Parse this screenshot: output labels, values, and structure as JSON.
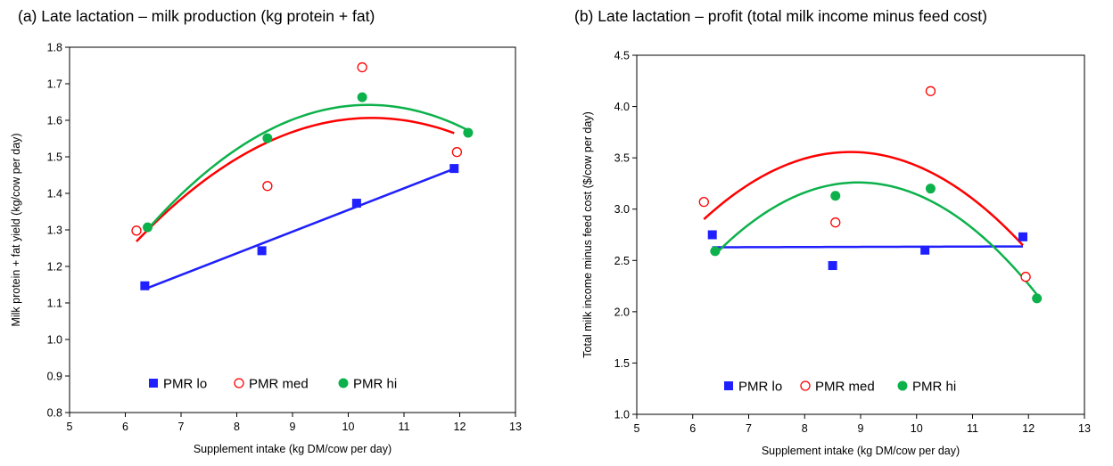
{
  "chart_data": [
    {
      "type": "scatter",
      "title": "(a) Late lactation – milk production (kg protein + fat)",
      "xlabel": "Supplement intake (kg DM/cow per day)",
      "ylabel": "Milk protein + fat yield (kg/cow per day)",
      "xlim": [
        5,
        13
      ],
      "ylim": [
        0.8,
        1.8
      ],
      "xticks": [
        "5",
        "6",
        "7",
        "8",
        "9",
        "10",
        "11",
        "12",
        "13"
      ],
      "yticks": [
        "0.8",
        "0.9",
        "1.0",
        "1.1",
        "1.2",
        "1.3",
        "1.4",
        "1.5",
        "1.6",
        "1.7",
        "1.8"
      ],
      "grid": false,
      "legend_position": "bottom",
      "series": [
        {
          "name": "PMR lo",
          "color": "#1f1fff",
          "marker": "square",
          "points": [
            [
              6.35,
              1.147
            ],
            [
              8.45,
              1.243
            ],
            [
              10.15,
              1.373
            ],
            [
              11.9,
              1.468
            ]
          ],
          "fit": "linear",
          "fit_range": [
            6.35,
            11.9
          ]
        },
        {
          "name": "PMR med",
          "color": "#ff0000",
          "marker": "open-circle",
          "points": [
            [
              6.2,
              1.298
            ],
            [
              8.55,
              1.42
            ],
            [
              10.25,
              1.745
            ],
            [
              11.95,
              1.513
            ]
          ],
          "fit": "quadratic",
          "fit_range": [
            6.2,
            11.9
          ]
        },
        {
          "name": "PMR hi",
          "color": "#0db14b",
          "marker": "filled-circle",
          "points": [
            [
              6.4,
              1.307
            ],
            [
              8.55,
              1.551
            ],
            [
              10.25,
              1.663
            ],
            [
              12.15,
              1.566
            ]
          ],
          "fit": "quadratic",
          "fit_range": [
            6.4,
            12.15
          ]
        }
      ]
    },
    {
      "type": "scatter",
      "title": "(b) Late lactation – profit (total milk income minus feed cost)",
      "xlabel": "Supplement intake (kg DM/cow per day)",
      "ylabel": "Total milk income minus feed cost ($/cow per day)",
      "xlim": [
        5,
        13
      ],
      "ylim": [
        1.0,
        4.5
      ],
      "xticks": [
        "5",
        "6",
        "7",
        "8",
        "9",
        "10",
        "11",
        "12",
        "13"
      ],
      "yticks": [
        "1.0",
        "1.5",
        "2.0",
        "2.5",
        "3.0",
        "3.5",
        "4.0",
        "4.5"
      ],
      "grid": false,
      "legend_position": "bottom",
      "series": [
        {
          "name": "PMR lo",
          "color": "#1f1fff",
          "marker": "square",
          "points": [
            [
              6.35,
              2.75
            ],
            [
              8.5,
              2.45
            ],
            [
              10.15,
              2.6
            ],
            [
              11.9,
              2.73
            ]
          ],
          "fit": "linear",
          "fit_range": [
            6.35,
            11.9
          ]
        },
        {
          "name": "PMR med",
          "color": "#ff0000",
          "marker": "open-circle",
          "points": [
            [
              6.2,
              3.07
            ],
            [
              8.55,
              2.87
            ],
            [
              10.25,
              4.15
            ],
            [
              11.95,
              2.34
            ]
          ],
          "fit": "quadratic",
          "fit_range": [
            6.2,
            11.9
          ]
        },
        {
          "name": "PMR hi",
          "color": "#0db14b",
          "marker": "filled-circle",
          "points": [
            [
              6.4,
              2.59
            ],
            [
              8.55,
              3.13
            ],
            [
              10.25,
              3.2
            ],
            [
              12.15,
              2.13
            ]
          ],
          "fit": "quadratic",
          "fit_range": [
            6.4,
            12.15
          ]
        }
      ]
    }
  ]
}
